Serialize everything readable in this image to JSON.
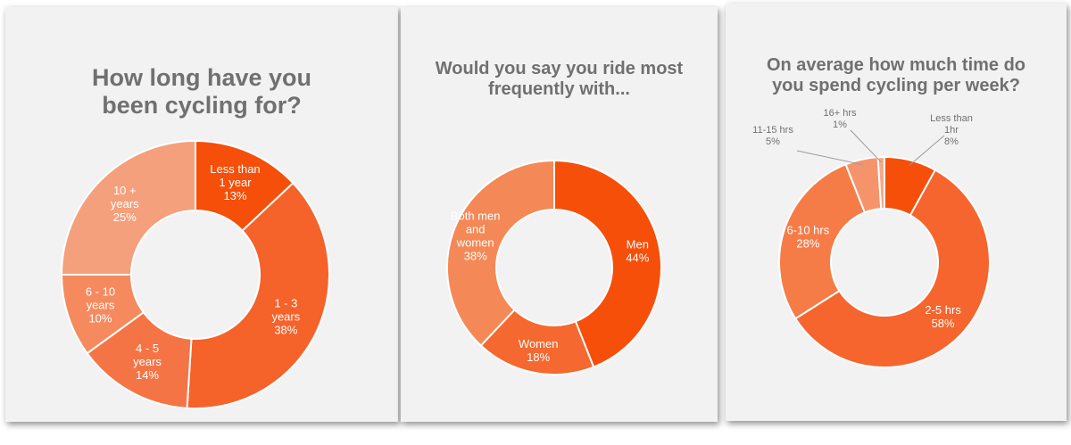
{
  "chart_data": [
    {
      "type": "pie",
      "title": "How long have you been cycling for?",
      "categories": [
        "Less than 1 year",
        "1 - 3 years",
        "4 - 5 years",
        "6 - 10 years",
        "10 + years"
      ],
      "values": [
        13,
        38,
        14,
        10,
        25
      ],
      "value_suffix": "%",
      "labels": [
        [
          "Less than",
          "1 year",
          "13%"
        ],
        [
          "1 - 3",
          "years",
          "38%"
        ],
        [
          "4 - 5",
          "years",
          "14%"
        ],
        [
          "6 - 10",
          "years",
          "10%"
        ],
        [
          "10 +",
          "years",
          "25%"
        ]
      ],
      "colors": [
        "#f54f0a",
        "#f5622a",
        "#f57446",
        "#f58a5e",
        "#f4a07c"
      ]
    },
    {
      "type": "pie",
      "title": "Would you say you ride most frequently with...",
      "categories": [
        "Men",
        "Women",
        "Both men and women"
      ],
      "values": [
        44,
        18,
        38
      ],
      "value_suffix": "%",
      "labels": [
        [
          "Men",
          "44%"
        ],
        [
          "Women",
          "18%"
        ],
        [
          "Both men",
          "and",
          "women",
          "38%"
        ]
      ],
      "colors": [
        "#f54f0a",
        "#f5682f",
        "#f48857"
      ]
    },
    {
      "type": "pie",
      "title": "On average how much time do you spend cycling per week?",
      "categories": [
        "Less than 1hr",
        "2-5 hrs",
        "6-10 hrs",
        "11-15 hrs",
        "16+ hrs"
      ],
      "values": [
        8,
        58,
        28,
        5,
        1
      ],
      "value_suffix": "%",
      "labels": [
        [
          "Less than",
          "1hr",
          "8%"
        ],
        [
          "2-5 hrs",
          "58%"
        ],
        [
          "6-10 hrs",
          "28%"
        ],
        [
          "11-15 hrs",
          "5%"
        ],
        [
          "16+ hrs",
          "1%"
        ]
      ],
      "colors": [
        "#f54f0a",
        "#f5652d",
        "#f57c47",
        "#f5946a",
        "#f4aa8a"
      ]
    }
  ]
}
